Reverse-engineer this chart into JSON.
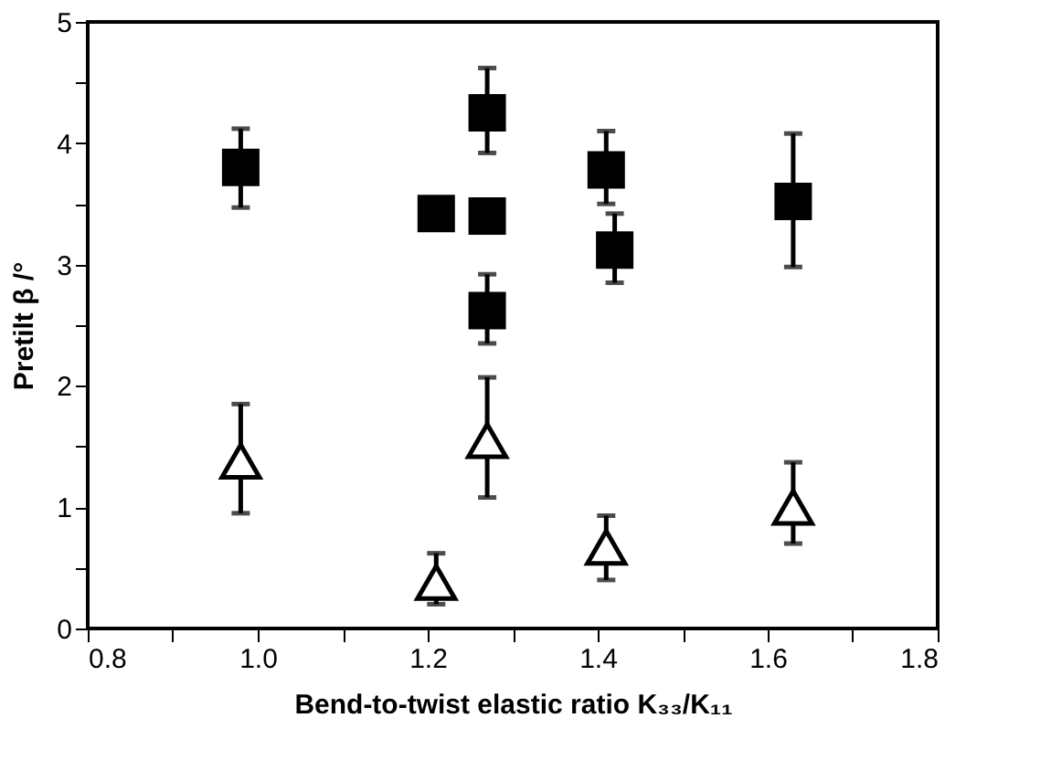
{
  "chart_data": {
    "type": "scatter",
    "xlabel": "Bend-to-twist elastic ratio   K₃₃/K₁₁",
    "ylabel": "Pretilt  β  /°",
    "xlim": [
      0.8,
      1.8
    ],
    "xticks": [
      0.8,
      {
        "value": 0.9,
        "label": null
      },
      {
        "value": 1,
        "label": "1.0"
      },
      {
        "value": 1.1,
        "label": null
      },
      1.2,
      {
        "value": 1.3,
        "label": null
      },
      1.4,
      {
        "value": 1.5,
        "label": null
      },
      1.6,
      {
        "value": 1.7,
        "label": null
      },
      1.8
    ],
    "ylim": [
      0,
      5
    ],
    "yticks": [
      0,
      {
        "value": 0.5,
        "label": null
      },
      1,
      {
        "value": 1.5,
        "label": null
      },
      2,
      {
        "value": 2.5,
        "label": null
      },
      3,
      {
        "value": 3.5,
        "label": null
      },
      4,
      {
        "value": 4.5,
        "label": null
      },
      5
    ],
    "grid": false,
    "series": [
      {
        "marker": "square",
        "color": "#000000",
        "x": [
          0.98,
          1.21,
          1.27,
          1.27,
          1.27,
          1.41,
          1.42,
          1.63
        ],
        "values": [
          3.8,
          3.42,
          4.25,
          3.4,
          2.62,
          3.78,
          3.12,
          3.52
        ],
        "errors": [
          [
            3.47,
            4.12
          ],
          null,
          [
            3.92,
            4.62
          ],
          null,
          [
            2.35,
            2.92
          ],
          [
            3.5,
            4.1
          ],
          [
            2.85,
            3.42
          ],
          [
            2.98,
            4.08
          ]
        ]
      },
      {
        "marker": "triangle",
        "color": "#000000",
        "x": [
          0.98,
          1.21,
          1.27,
          1.41,
          1.63
        ],
        "values": [
          1.38,
          0.38,
          1.55,
          0.67,
          1.0
        ],
        "errors": [
          [
            0.95,
            1.85
          ],
          [
            0.2,
            0.62
          ],
          [
            1.08,
            2.07
          ],
          [
            0.4,
            0.93
          ],
          [
            0.7,
            1.37
          ]
        ]
      }
    ]
  }
}
